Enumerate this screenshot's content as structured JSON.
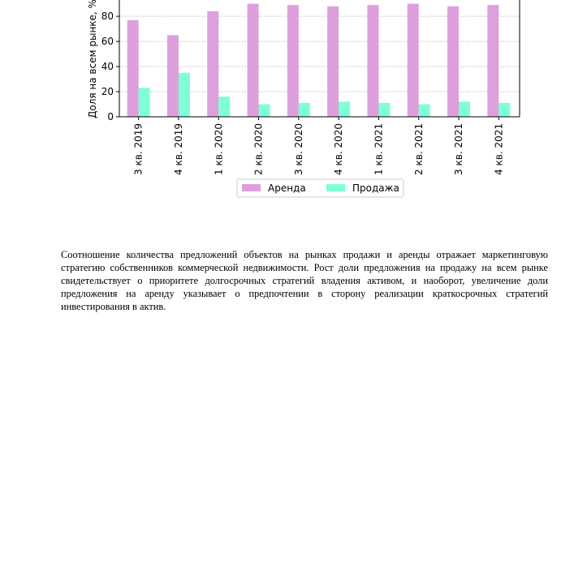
{
  "chart_data": {
    "type": "bar",
    "categories": [
      "3 кв. 2019",
      "4 кв. 2019",
      "1 кв. 2020",
      "2 кв. 2020",
      "3 кв. 2020",
      "4 кв. 2020",
      "1 кв. 2021",
      "2 кв. 2021",
      "3 кв. 2021",
      "4 кв. 2021"
    ],
    "series": [
      {
        "name": "Аренда",
        "color": "#dda0dd",
        "values": [
          77,
          65,
          84,
          90,
          89,
          88,
          89,
          90,
          88,
          89
        ]
      },
      {
        "name": "Продажа",
        "color": "#7fffd4",
        "values": [
          23,
          35,
          16,
          10,
          11,
          12,
          11,
          10,
          12,
          11
        ]
      }
    ],
    "ylabel": "Доля на всем рынке, %",
    "ylim": [
      0,
      93
    ],
    "yticks": [
      0,
      20,
      40,
      60,
      80
    ],
    "grid": "y-dotted",
    "legend_placement": "bottom-center"
  },
  "paragraph": "Соотношение количества предложений объектов на рынках продажи и аренды отражает маркетинговую стратегию собственников коммерческой недвижимости. Рост доли предложения на продажу на всем рынке свидетельствует о приоритете долгосрочных стратегий владения активом, и наоборот, увеличение доли предложения на аренду указывает о предпочтении в сторону реализации краткосрочных стратегий инвестирования в актив."
}
